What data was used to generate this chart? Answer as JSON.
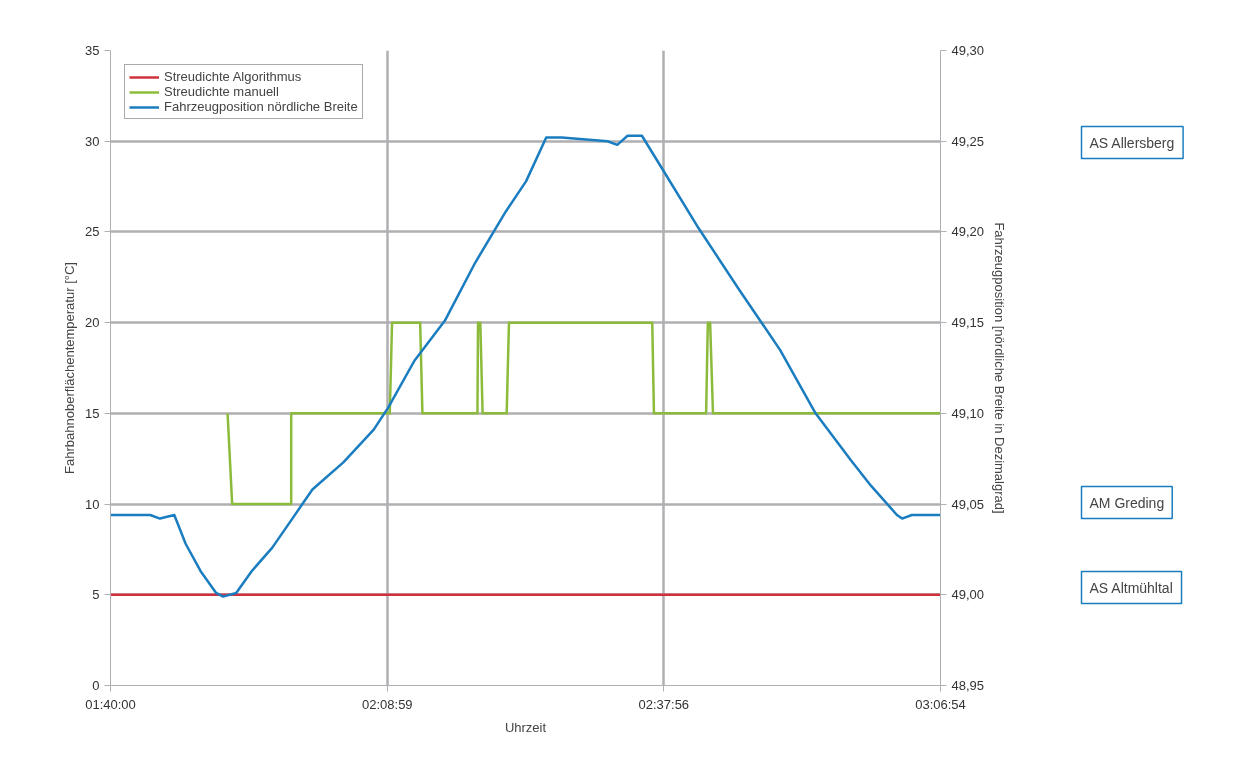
{
  "chart_data": {
    "type": "line",
    "xlabel": "Uhrzeit",
    "ylabel": "Fahrbahnoberflächentemperatur [°C]",
    "y2label": "Fahrzeugposition [nördliche Breite in Dezimalgrad]",
    "xlim": [
      1.6667,
      3.115
    ],
    "xticks": [
      {
        "value": 1.6667,
        "label": "01:40:00"
      },
      {
        "value": 2.1497,
        "label": "02:08:59"
      },
      {
        "value": 2.6322,
        "label": "02:37:56"
      },
      {
        "value": 3.115,
        "label": "03:06:54"
      }
    ],
    "ylim": [
      0,
      35
    ],
    "yticks": [
      0,
      5,
      10,
      15,
      20,
      25,
      30,
      35
    ],
    "y2lim": [
      48.95,
      49.3
    ],
    "y2ticks": [
      {
        "value": 48.95,
        "label": "48,95"
      },
      {
        "value": 49.0,
        "label": "49,00"
      },
      {
        "value": 49.05,
        "label": "49,05"
      },
      {
        "value": 49.1,
        "label": "49,10"
      },
      {
        "value": 49.15,
        "label": "49,15"
      },
      {
        "value": 49.2,
        "label": "49,20"
      },
      {
        "value": 49.25,
        "label": "49,25"
      },
      {
        "value": 49.3,
        "label": "49,30"
      }
    ],
    "grid": true,
    "legend": "top left",
    "line_style": "solid",
    "marker": "none",
    "series": [
      {
        "name": "Streudichte Algorithmus",
        "color": "#d0303c",
        "x": [
          1.6667,
          3.115
        ],
        "values": [
          5,
          5
        ]
      },
      {
        "name": "Streudichte manuell",
        "color": "#8cbb3c",
        "x": [
          1.871,
          1.879,
          1.982,
          1.982,
          2.154,
          2.158,
          2.207,
          2.211,
          2.307,
          2.308,
          2.312,
          2.316,
          2.358,
          2.362,
          2.612,
          2.615,
          2.706,
          2.709,
          2.713,
          2.718,
          3.115
        ],
        "values": [
          15,
          10,
          10,
          15,
          15,
          20,
          20,
          15,
          15,
          20,
          20,
          15,
          15,
          20,
          20,
          15,
          15,
          20,
          20,
          15,
          15
        ]
      },
      {
        "name": "Fahrzeugposition nördliche Breite",
        "color": "#1a7dc0",
        "axis": "y2",
        "x": [
          1.667,
          1.709,
          1.736,
          1.753,
          1.778,
          1.798,
          1.824,
          1.851,
          1.863,
          1.886,
          1.913,
          1.949,
          1.984,
          2.019,
          2.073,
          2.126,
          2.151,
          2.197,
          2.25,
          2.303,
          2.356,
          2.392,
          2.427,
          2.454,
          2.534,
          2.551,
          2.569,
          2.594,
          2.631,
          2.693,
          2.764,
          2.835,
          2.897,
          2.959,
          2.994,
          3.039,
          3.048,
          3.065,
          3.115
        ],
        "values": [
          49.044,
          49.044,
          49.044,
          49.042,
          49.044,
          49.028,
          49.013,
          49.001,
          48.999,
          49.001,
          49.013,
          49.026,
          49.042,
          49.058,
          49.073,
          49.091,
          49.103,
          49.129,
          49.151,
          49.183,
          49.211,
          49.228,
          49.252,
          49.252,
          49.25,
          49.248,
          49.253,
          49.253,
          49.234,
          49.202,
          49.168,
          49.135,
          49.1,
          49.074,
          49.06,
          49.044,
          49.042,
          49.044,
          49.044
        ]
      }
    ],
    "annotations": [
      "AS Allersberg",
      "AM Greding",
      "AS Altmühltal"
    ]
  }
}
